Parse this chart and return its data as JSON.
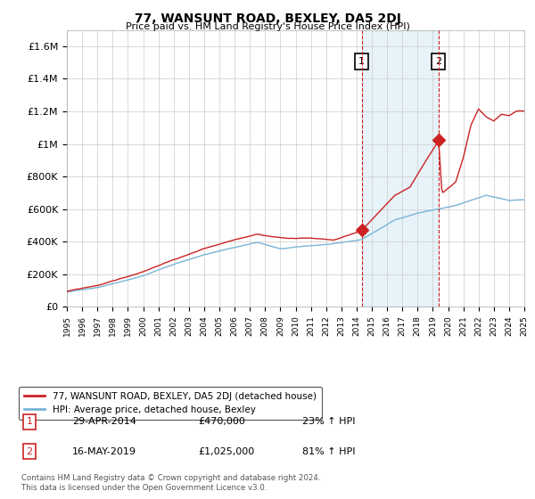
{
  "title": "77, WANSUNT ROAD, BEXLEY, DA5 2DJ",
  "subtitle": "Price paid vs. HM Land Registry's House Price Index (HPI)",
  "ylim": [
    0,
    1700000
  ],
  "yticks": [
    0,
    200000,
    400000,
    600000,
    800000,
    1000000,
    1200000,
    1400000,
    1600000
  ],
  "ytick_labels": [
    "£0",
    "£200K",
    "£400K",
    "£600K",
    "£800K",
    "£1M",
    "£1.2M",
    "£1.4M",
    "£1.6M"
  ],
  "hpi_color": "#7ab4d8",
  "price_color": "#cc2222",
  "shade_color": "#d0e8f5",
  "marker1_year": 2014.33,
  "marker1_price": 470000,
  "marker1_label": "1",
  "marker1_date": "29-APR-2014",
  "marker1_amount": "£470,000",
  "marker1_pct": "23% ↑ HPI",
  "marker2_year": 2019.38,
  "marker2_price": 1025000,
  "marker2_label": "2",
  "marker2_date": "16-MAY-2019",
  "marker2_amount": "£1,025,000",
  "marker2_pct": "81% ↑ HPI",
  "legend_line1": "77, WANSUNT ROAD, BEXLEY, DA5 2DJ (detached house)",
  "legend_line2": "HPI: Average price, detached house, Bexley",
  "footer": "Contains HM Land Registry data © Crown copyright and database right 2024.\nThis data is licensed under the Open Government Licence v3.0.",
  "background_color": "#ffffff",
  "grid_color": "#cccccc"
}
